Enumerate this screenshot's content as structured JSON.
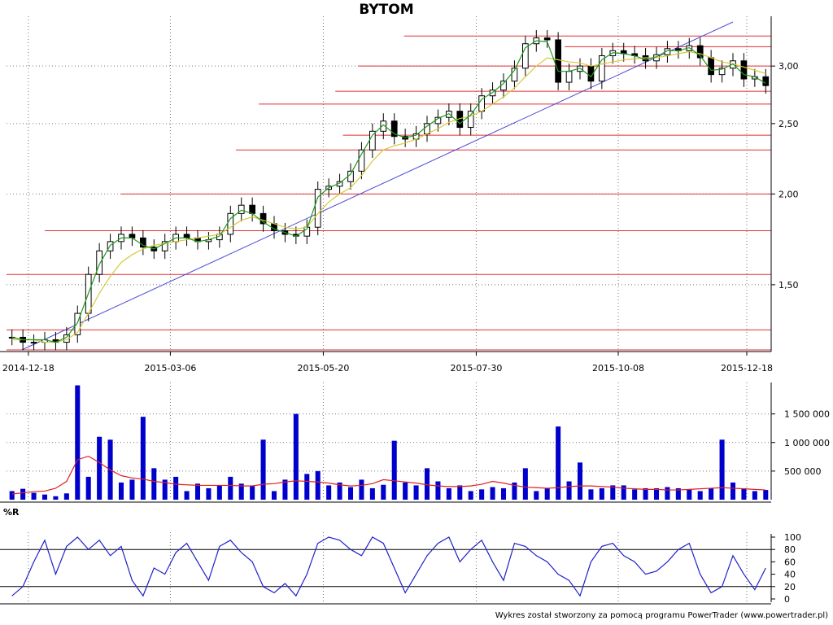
{
  "title": "BYTOM",
  "indicator_label": "%R",
  "footer": "Wykres został stworzony za pomocą programu PowerTrader (www.powertrader.pl)",
  "colors": {
    "candle": "#000000",
    "ma_short": "#1f9a1f",
    "ma_long": "#d8c93a",
    "support_lines": "#e23030",
    "trendline": "#4a4ad8",
    "volume_bars": "#0000cc",
    "volume_ma": "#e02020",
    "williams_r": "#2020cc"
  },
  "chart_data": [
    {
      "type": "candlestick",
      "title": "BYTOM",
      "x_tick_labels": [
        "2014-12-18",
        "2015-03-06",
        "2015-05-20",
        "2015-07-30",
        "2015-10-08",
        "2015-12-18"
      ],
      "y_tick_labels": [
        "1,50",
        "2,00",
        "2,50",
        "3,00"
      ],
      "y_ticks": [
        1.5,
        2.0,
        2.5,
        3.0
      ],
      "ylim": [
        1.22,
        3.45
      ],
      "log_scale": true,
      "grid": true,
      "close": [
        1.27,
        1.25,
        1.25,
        1.26,
        1.25,
        1.28,
        1.37,
        1.55,
        1.67,
        1.72,
        1.76,
        1.74,
        1.69,
        1.67,
        1.72,
        1.76,
        1.74,
        1.72,
        1.73,
        1.76,
        1.88,
        1.93,
        1.88,
        1.82,
        1.78,
        1.76,
        1.75,
        1.8,
        2.03,
        2.05,
        2.08,
        2.15,
        2.3,
        2.44,
        2.52,
        2.4,
        2.38,
        2.42,
        2.5,
        2.55,
        2.6,
        2.47,
        2.6,
        2.73,
        2.78,
        2.86,
        2.98,
        3.22,
        3.28,
        3.26,
        2.85,
        2.95,
        3.0,
        2.86,
        3.1,
        3.15,
        3.12,
        3.1,
        3.05,
        3.11,
        3.17,
        3.15,
        3.2,
        3.08,
        2.92,
        2.98,
        3.05,
        2.88,
        2.9,
        2.82
      ],
      "ma_short": [
        1.27,
        1.26,
        1.26,
        1.26,
        1.25,
        1.27,
        1.33,
        1.46,
        1.6,
        1.7,
        1.74,
        1.74,
        1.7,
        1.68,
        1.71,
        1.74,
        1.74,
        1.72,
        1.73,
        1.75,
        1.85,
        1.9,
        1.88,
        1.83,
        1.79,
        1.77,
        1.75,
        1.79,
        1.98,
        2.04,
        2.07,
        2.13,
        2.27,
        2.41,
        2.49,
        2.42,
        2.39,
        2.41,
        2.48,
        2.54,
        2.58,
        2.5,
        2.57,
        2.7,
        2.76,
        2.84,
        2.96,
        3.18,
        3.25,
        3.24,
        2.95,
        2.95,
        2.98,
        2.9,
        3.06,
        3.13,
        3.12,
        3.1,
        3.06,
        3.09,
        3.15,
        3.15,
        3.18,
        3.1,
        2.96,
        2.97,
        3.02,
        2.92,
        2.9,
        2.84
      ],
      "ma_long": [
        1.26,
        1.26,
        1.26,
        1.25,
        1.25,
        1.26,
        1.29,
        1.37,
        1.46,
        1.54,
        1.61,
        1.65,
        1.68,
        1.7,
        1.71,
        1.72,
        1.73,
        1.74,
        1.75,
        1.76,
        1.8,
        1.84,
        1.86,
        1.84,
        1.82,
        1.8,
        1.79,
        1.8,
        1.88,
        1.95,
        2.0,
        2.04,
        2.12,
        2.22,
        2.3,
        2.33,
        2.35,
        2.38,
        2.42,
        2.46,
        2.51,
        2.54,
        2.56,
        2.6,
        2.66,
        2.72,
        2.8,
        2.9,
        3.0,
        3.08,
        3.06,
        3.04,
        3.03,
        3.0,
        3.02,
        3.04,
        3.06,
        3.07,
        3.08,
        3.08,
        3.1,
        3.12,
        3.14,
        3.12,
        3.08,
        3.04,
        3.02,
        2.99,
        2.96,
        2.93
      ],
      "horizontal_levels": [
        {
          "level": 1.22,
          "from": 0.0,
          "to": 1.0
        },
        {
          "level": 1.3,
          "from": 0.0,
          "to": 1.0
        },
        {
          "level": 1.55,
          "from": 0.0,
          "to": 1.0
        },
        {
          "level": 1.78,
          "from": 0.05,
          "to": 1.0
        },
        {
          "level": 2.0,
          "from": 0.15,
          "to": 1.0
        },
        {
          "level": 2.3,
          "from": 0.3,
          "to": 1.0
        },
        {
          "level": 2.41,
          "from": 0.44,
          "to": 1.0
        },
        {
          "level": 2.66,
          "from": 0.33,
          "to": 1.0
        },
        {
          "level": 2.77,
          "from": 0.43,
          "to": 1.0
        },
        {
          "level": 3.0,
          "from": 0.46,
          "to": 1.0
        },
        {
          "level": 3.19,
          "from": 0.73,
          "to": 1.0
        },
        {
          "level": 3.3,
          "from": 0.52,
          "to": 1.0
        }
      ],
      "trendline": [
        {
          "x": 0.02,
          "y": 1.22
        },
        {
          "x": 0.95,
          "y": 3.45
        }
      ]
    },
    {
      "type": "bar",
      "title": "volume",
      "y_tick_labels": [
        "500 000",
        "1 000 000",
        "1 500 000"
      ],
      "y_ticks": [
        500000,
        1000000,
        1500000
      ],
      "ylim": [
        0,
        2050000
      ],
      "values": [
        150000,
        190000,
        120000,
        90000,
        60000,
        110000,
        2000000,
        400000,
        1100000,
        1050000,
        300000,
        350000,
        1450000,
        550000,
        350000,
        400000,
        150000,
        280000,
        200000,
        250000,
        400000,
        280000,
        250000,
        1050000,
        150000,
        350000,
        1500000,
        450000,
        500000,
        250000,
        300000,
        220000,
        350000,
        200000,
        260000,
        1030000,
        300000,
        250000,
        550000,
        320000,
        200000,
        250000,
        150000,
        180000,
        220000,
        200000,
        300000,
        550000,
        150000,
        200000,
        1280000,
        320000,
        650000,
        180000,
        200000,
        250000,
        250000,
        180000,
        200000,
        200000,
        220000,
        200000,
        180000,
        150000,
        200000,
        1050000,
        300000,
        200000,
        150000,
        170000
      ],
      "ma": [
        100000,
        120000,
        140000,
        150000,
        200000,
        320000,
        700000,
        760000,
        650000,
        520000,
        420000,
        380000,
        360000,
        320000,
        300000,
        270000,
        260000,
        250000,
        250000,
        250000,
        250000,
        240000,
        240000,
        270000,
        280000,
        310000,
        330000,
        320000,
        310000,
        290000,
        260000,
        240000,
        250000,
        280000,
        350000,
        330000,
        310000,
        290000,
        260000,
        240000,
        230000,
        230000,
        240000,
        270000,
        320000,
        290000,
        250000,
        220000,
        210000,
        200000,
        210000,
        230000,
        240000,
        240000,
        230000,
        220000,
        200000,
        190000,
        180000,
        180000,
        170000,
        170000,
        180000,
        190000,
        200000,
        210000,
        200000,
        190000,
        180000,
        170000
      ]
    },
    {
      "type": "line",
      "title": "%R",
      "y_tick_labels": [
        "0",
        "20",
        "40",
        "60",
        "80",
        "100"
      ],
      "y_ticks": [
        0,
        20,
        40,
        60,
        80,
        100
      ],
      "ylim": [
        0,
        100
      ],
      "reference_lines": [
        20,
        80
      ],
      "values": [
        5,
        20,
        60,
        95,
        40,
        85,
        100,
        80,
        95,
        70,
        85,
        30,
        5,
        50,
        40,
        75,
        90,
        60,
        30,
        85,
        95,
        75,
        60,
        20,
        10,
        25,
        5,
        40,
        90,
        100,
        95,
        80,
        70,
        100,
        90,
        50,
        10,
        40,
        70,
        90,
        100,
        60,
        80,
        95,
        60,
        30,
        90,
        85,
        70,
        60,
        40,
        30,
        5,
        60,
        85,
        90,
        70,
        60,
        40,
        45,
        60,
        80,
        90,
        40,
        10,
        20,
        70,
        40,
        15,
        50
      ]
    }
  ]
}
